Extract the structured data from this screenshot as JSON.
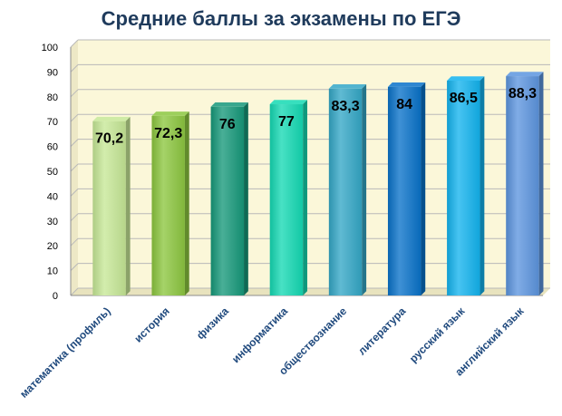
{
  "chart_data": {
    "type": "bar",
    "title": "Средние баллы за экзамены по ЕГЭ",
    "categories": [
      "математика (профиль)",
      "история",
      "физика",
      "информатика",
      "обществознание",
      "литература",
      "русский язык",
      "английский язык"
    ],
    "values": [
      70.2,
      72.3,
      76,
      77,
      83.3,
      84,
      86.5,
      88.3
    ],
    "value_labels": [
      "70,2",
      "72,3",
      "76",
      "77",
      "83,3",
      "84",
      "86,5",
      "88,3"
    ],
    "bar_colors": [
      "#C6E896",
      "#8CC63F",
      "#16987A",
      "#14D9B3",
      "#33A7C6",
      "#0972C9",
      "#13B3EE",
      "#5C95DF"
    ],
    "yticks": [
      "0",
      "10",
      "20",
      "30",
      "40",
      "50",
      "60",
      "70",
      "80",
      "90",
      "100"
    ],
    "ylim": [
      0,
      100
    ],
    "xlabel": "",
    "ylabel": "",
    "grid": true,
    "plot_background": "#FBF7D9",
    "title_color": "#1F3B5C",
    "category_label_color": "#1F497D"
  }
}
